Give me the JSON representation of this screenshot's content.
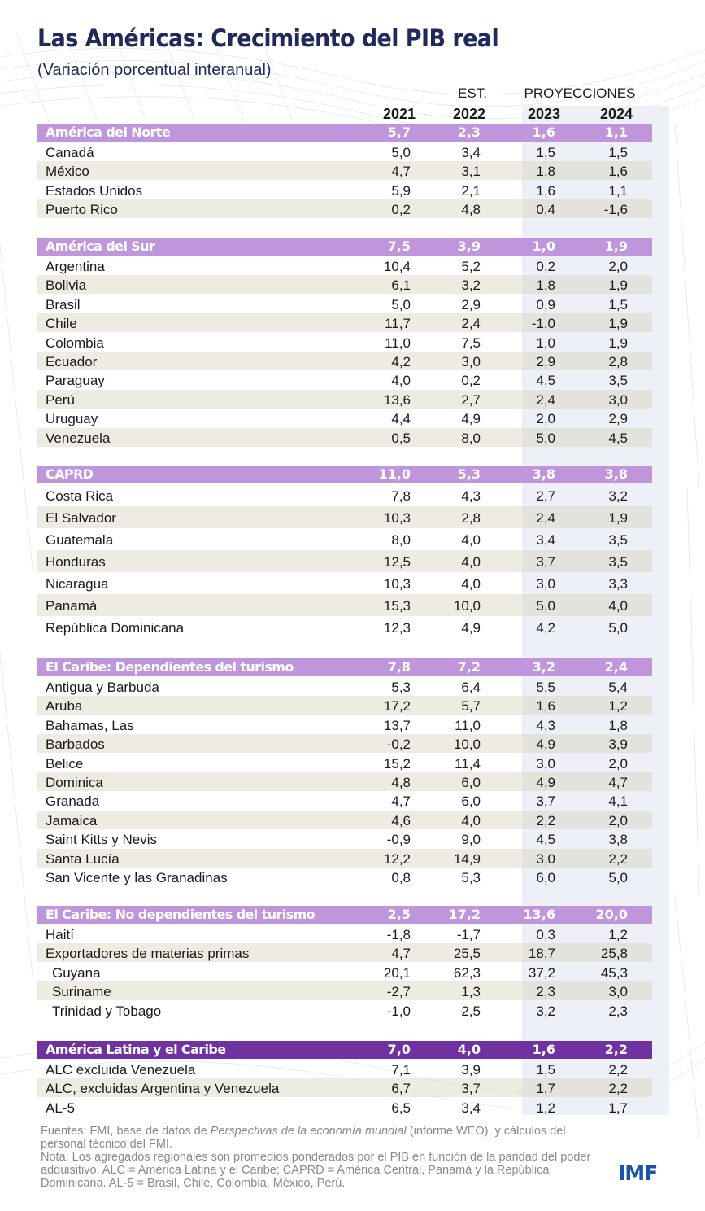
{
  "header": {
    "title": "Las Américas: Crecimiento del PIB real",
    "subtitle": "(Variación porcentual interanual)",
    "est_label": "EST.",
    "proj_label": "PROYECCIONES",
    "years": [
      "2021",
      "2022",
      "2023",
      "2024"
    ]
  },
  "colors": {
    "title": "#1f2a5a",
    "section_header": "#bf95dc",
    "total_header": "#6f32a0",
    "projection_panel": "#edf0f6",
    "alt_row": "#ede9df",
    "imf_logo": "#1b56a6"
  },
  "sections": [
    {
      "name": "América del Norte",
      "values": [
        "5,7",
        "2,3",
        "1,6",
        "1,1"
      ],
      "rows": [
        {
          "label": "Canadá",
          "values": [
            "5,0",
            "3,4",
            "1,5",
            "1,5"
          ]
        },
        {
          "label": "México",
          "values": [
            "4,7",
            "3,1",
            "1,8",
            "1,6"
          ]
        },
        {
          "label": "Estados Unidos",
          "values": [
            "5,9",
            "2,1",
            "1,6",
            "1,1"
          ]
        },
        {
          "label": "Puerto Rico",
          "values": [
            "0,2",
            "4,8",
            "0,4",
            "-1,6"
          ]
        }
      ]
    },
    {
      "name": "América del Sur",
      "values": [
        "7,5",
        "3,9",
        "1,0",
        "1,9"
      ],
      "rows": [
        {
          "label": "Argentina",
          "values": [
            "10,4",
            "5,2",
            "0,2",
            "2,0"
          ]
        },
        {
          "label": "Bolivia",
          "values": [
            "6,1",
            "3,2",
            "1,8",
            "1,9"
          ]
        },
        {
          "label": "Brasil",
          "values": [
            "5,0",
            "2,9",
            "0,9",
            "1,5"
          ]
        },
        {
          "label": "Chile",
          "values": [
            "11,7",
            "2,4",
            "-1,0",
            "1,9"
          ]
        },
        {
          "label": "Colombia",
          "values": [
            "11,0",
            "7,5",
            "1,0",
            "1,9"
          ]
        },
        {
          "label": "Ecuador",
          "values": [
            "4,2",
            "3,0",
            "2,9",
            "2,8"
          ]
        },
        {
          "label": "Paraguay",
          "values": [
            "4,0",
            "0,2",
            "4,5",
            "3,5"
          ]
        },
        {
          "label": "Perú",
          "values": [
            "13,6",
            "2,7",
            "2,4",
            "3,0"
          ]
        },
        {
          "label": "Uruguay",
          "values": [
            "4,4",
            "4,9",
            "2,0",
            "2,9"
          ]
        },
        {
          "label": "Venezuela",
          "values": [
            "0,5",
            "8,0",
            "5,0",
            "4,5"
          ]
        }
      ]
    },
    {
      "name": "CAPRD",
      "values": [
        "11,0",
        "5,3",
        "3,8",
        "3,8"
      ],
      "rows": [
        {
          "label": "Costa Rica",
          "values": [
            "7,8",
            "4,3",
            "2,7",
            "3,2"
          ]
        },
        {
          "label": "El Salvador",
          "values": [
            "10,3",
            "2,8",
            "2,4",
            "1,9"
          ]
        },
        {
          "label": "Guatemala",
          "values": [
            "8,0",
            "4,0",
            "3,4",
            "3,5"
          ]
        },
        {
          "label": "Honduras",
          "values": [
            "12,5",
            "4,0",
            "3,7",
            "3,5"
          ]
        },
        {
          "label": "Nicaragua",
          "values": [
            "10,3",
            "4,0",
            "3,0",
            "3,3"
          ]
        },
        {
          "label": "Panamá",
          "values": [
            "15,3",
            "10,0",
            "5,0",
            "4,0"
          ]
        },
        {
          "label": "República Dominicana",
          "values": [
            "12,3",
            "4,9",
            "4,2",
            "5,0"
          ]
        }
      ]
    },
    {
      "name": "El Caribe: Dependientes del turismo",
      "values": [
        "7,8",
        "7,2",
        "3,2",
        "2,4"
      ],
      "rows": [
        {
          "label": "Antigua y Barbuda",
          "values": [
            "5,3",
            "6,4",
            "5,5",
            "5,4"
          ]
        },
        {
          "label": "Aruba",
          "values": [
            "17,2",
            "5,7",
            "1,6",
            "1,2"
          ]
        },
        {
          "label": "Bahamas, Las",
          "values": [
            "13,7",
            "11,0",
            "4,3",
            "1,8"
          ]
        },
        {
          "label": "Barbados",
          "values": [
            "-0,2",
            "10,0",
            "4,9",
            "3,9"
          ]
        },
        {
          "label": "Belice",
          "values": [
            "15,2",
            "11,4",
            "3,0",
            "2,0"
          ]
        },
        {
          "label": "Dominica",
          "values": [
            "4,8",
            "6,0",
            "4,9",
            "4,7"
          ]
        },
        {
          "label": "Granada",
          "values": [
            "4,7",
            "6,0",
            "3,7",
            "4,1"
          ]
        },
        {
          "label": "Jamaica",
          "values": [
            "4,6",
            "4,0",
            "2,2",
            "2,0"
          ]
        },
        {
          "label": "Saint Kitts y Nevis",
          "values": [
            "-0,9",
            "9,0",
            "4,5",
            "3,8"
          ]
        },
        {
          "label": "Santa Lucía",
          "values": [
            "12,2",
            "14,9",
            "3,0",
            "2,2"
          ]
        },
        {
          "label": "San Vicente y las Granadinas",
          "values": [
            "0,8",
            "5,3",
            "6,0",
            "5,0"
          ]
        }
      ]
    },
    {
      "name": "El Caribe: No dependientes del turismo",
      "values": [
        "2,5",
        "17,2",
        "13,6",
        "20,0"
      ],
      "rows": [
        {
          "label": "Haití",
          "values": [
            "-1,8",
            "-1,7",
            "0,3",
            "1,2"
          ]
        },
        {
          "label": "Exportadores de materias primas",
          "values": [
            "4,7",
            "25,5",
            "18,7",
            "25,8"
          ]
        },
        {
          "label": "Guyana",
          "values": [
            "20,1",
            "62,3",
            "37,2",
            "45,3"
          ],
          "indent": true
        },
        {
          "label": "Suriname",
          "values": [
            "-2,7",
            "1,3",
            "2,3",
            "3,0"
          ],
          "indent": true
        },
        {
          "label": "Trinidad y Tobago",
          "values": [
            "-1,0",
            "2,5",
            "3,2",
            "2,3"
          ],
          "indent": true
        }
      ]
    },
    {
      "name": "América Latina y el Caribe",
      "values": [
        "7,0",
        "4,0",
        "1,6",
        "2,2"
      ],
      "total": true,
      "rows": [
        {
          "label": "ALC excluida Venezuela",
          "values": [
            "7,1",
            "3,9",
            "1,5",
            "2,2"
          ]
        },
        {
          "label": "ALC, excluidas Argentina y Venezuela",
          "values": [
            "6,7",
            "3,7",
            "1,7",
            "2,2"
          ]
        },
        {
          "label": "AL-5",
          "values": [
            "6,5",
            "3,4",
            "1,2",
            "1,7"
          ]
        }
      ]
    }
  ],
  "footer": {
    "sources_prefix": "Fuentes: FMI, base de datos de ",
    "sources_italic": "Perspectivas de la economía mundial",
    "sources_suffix": " (informe WEO), y cálculos del personal técnico del FMI.",
    "note": "Nota: Los agregados regionales son promedios ponderados por el PIB en función de la paridad del poder adquisitivo. ALC = América Latina y el Caribe; CAPRD = América Central, Panamá y la República Dominicana. AL-5 = Brasil, Chile, Colombia, México, Perú.",
    "logo": "IMF"
  }
}
